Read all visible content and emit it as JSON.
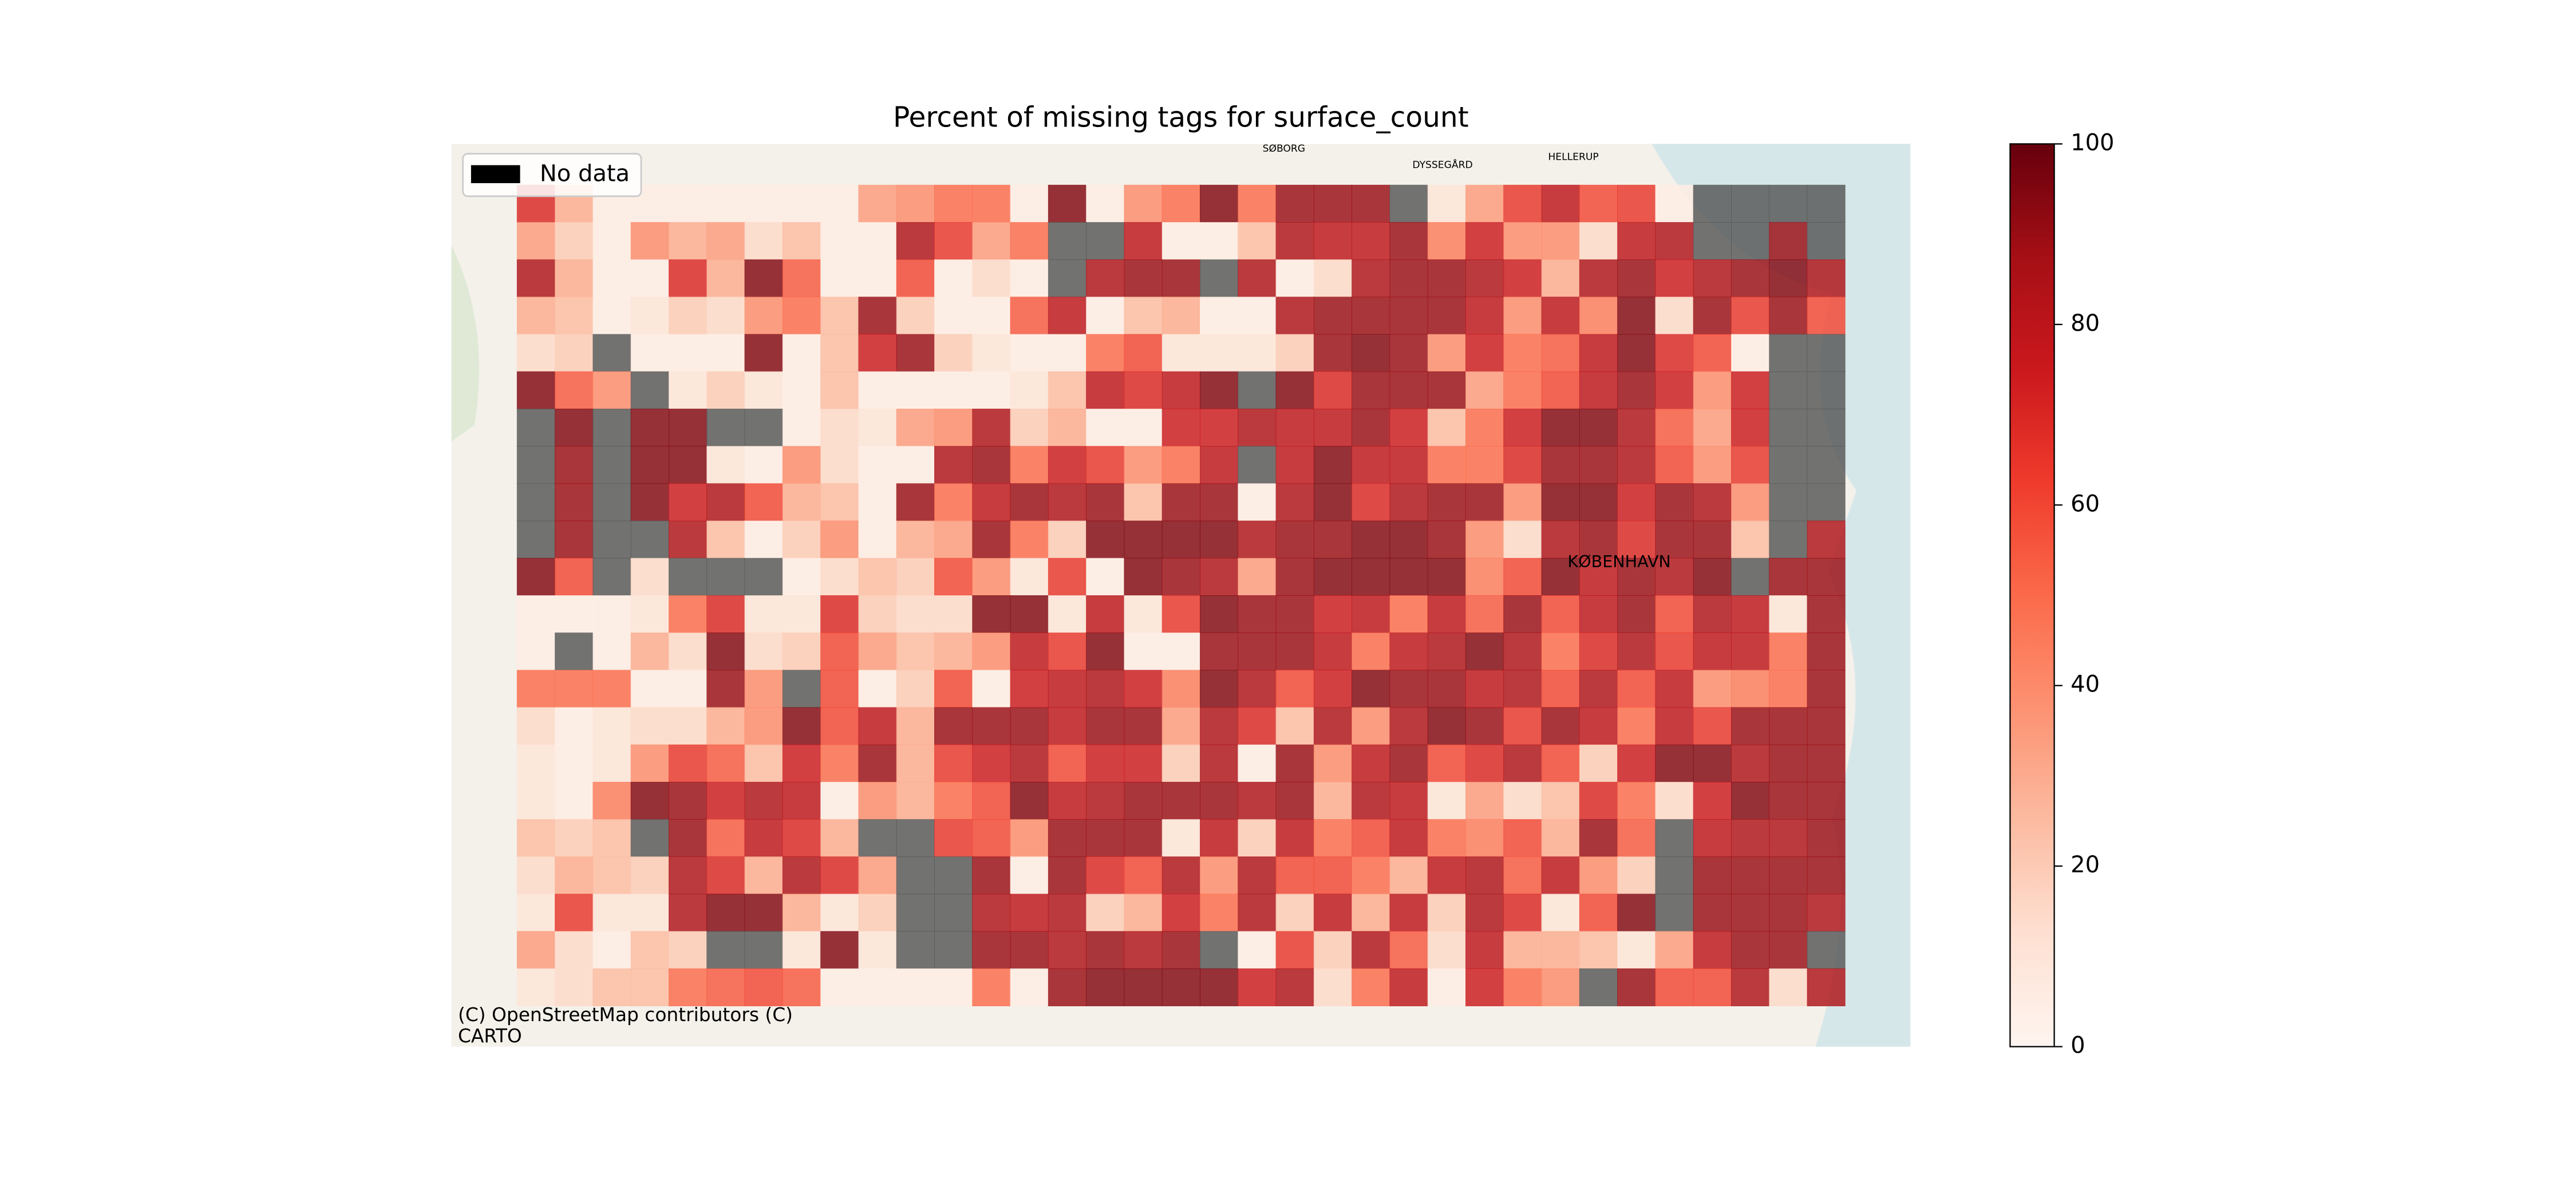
{
  "chart_data": {
    "type": "heatmap",
    "title": "Percent of missing tags for surface_count",
    "legend_label": "No data",
    "legend_color": "#000000",
    "nodata_color": "#555555",
    "legend_position": "upper left",
    "attribution": [
      "(C) OpenStreetMap contributors (C)",
      "CARTO"
    ],
    "map_labels": [
      "SØBORG",
      "DYSSEGÅRD",
      "HELLERUP",
      "KØBENHAVN"
    ],
    "colorscale": [
      "#fff5f0",
      "#fee0d2",
      "#fcbba1",
      "#fc9272",
      "#fb6a4a",
      "#ef3b2c",
      "#cb181d",
      "#a50f15",
      "#67000d"
    ],
    "clim": [
      0,
      100
    ],
    "cticks": [
      0,
      20,
      40,
      60,
      80,
      100
    ],
    "values": [
      [
        70,
        30,
        5,
        5,
        5,
        5,
        5,
        5,
        5,
        35,
        40,
        50,
        50,
        5,
        95,
        5,
        40,
        50,
        95,
        50,
        90,
        90,
        90,
        null,
        10,
        35,
        65,
        80,
        60,
        65,
        5,
        null,
        null,
        null,
        null
      ],
      [
        35,
        20,
        5,
        40,
        30,
        35,
        15,
        25,
        5,
        5,
        85,
        65,
        35,
        50,
        null,
        null,
        80,
        5,
        5,
        25,
        85,
        80,
        80,
        90,
        45,
        75,
        40,
        40,
        15,
        80,
        85,
        null,
        null,
        90,
        null
      ],
      [
        85,
        30,
        5,
        5,
        70,
        30,
        95,
        55,
        5,
        5,
        60,
        5,
        15,
        5,
        null,
        85,
        90,
        90,
        null,
        85,
        5,
        15,
        85,
        90,
        90,
        85,
        75,
        30,
        85,
        90,
        75,
        85,
        90,
        95,
        85
      ],
      [
        30,
        25,
        5,
        10,
        20,
        15,
        40,
        50,
        25,
        90,
        20,
        5,
        5,
        55,
        80,
        5,
        25,
        30,
        5,
        5,
        85,
        90,
        90,
        90,
        90,
        80,
        40,
        80,
        45,
        95,
        15,
        90,
        65,
        90,
        60
      ],
      [
        15,
        20,
        null,
        5,
        5,
        5,
        95,
        5,
        25,
        75,
        90,
        20,
        10,
        5,
        5,
        50,
        60,
        10,
        10,
        10,
        20,
        90,
        95,
        90,
        40,
        75,
        50,
        55,
        80,
        95,
        70,
        60,
        5,
        null,
        null
      ],
      [
        95,
        55,
        40,
        null,
        10,
        20,
        10,
        5,
        25,
        5,
        5,
        5,
        5,
        10,
        25,
        80,
        70,
        80,
        95,
        null,
        95,
        70,
        90,
        90,
        90,
        35,
        50,
        60,
        80,
        90,
        75,
        40,
        75,
        null,
        null
      ],
      [
        null,
        95,
        null,
        95,
        95,
        null,
        null,
        5,
        15,
        10,
        35,
        40,
        85,
        20,
        30,
        5,
        5,
        75,
        75,
        85,
        80,
        80,
        90,
        75,
        25,
        50,
        75,
        95,
        95,
        85,
        55,
        35,
        75,
        null,
        null
      ],
      [
        null,
        90,
        null,
        95,
        95,
        10,
        5,
        40,
        15,
        5,
        5,
        85,
        90,
        50,
        75,
        65,
        40,
        50,
        80,
        null,
        80,
        95,
        80,
        80,
        50,
        50,
        70,
        90,
        90,
        85,
        60,
        40,
        65,
        null,
        null
      ],
      [
        null,
        90,
        null,
        95,
        75,
        85,
        60,
        30,
        25,
        5,
        90,
        50,
        80,
        90,
        85,
        90,
        25,
        90,
        90,
        5,
        85,
        95,
        70,
        85,
        90,
        90,
        40,
        95,
        95,
        75,
        90,
        85,
        40,
        null,
        null
      ],
      [
        null,
        90,
        null,
        null,
        85,
        25,
        5,
        20,
        40,
        5,
        30,
        35,
        90,
        50,
        20,
        95,
        95,
        95,
        95,
        85,
        90,
        90,
        95,
        95,
        90,
        40,
        15,
        85,
        90,
        70,
        90,
        90,
        25,
        null,
        85
      ],
      [
        95,
        60,
        null,
        15,
        null,
        null,
        null,
        5,
        15,
        25,
        20,
        60,
        40,
        10,
        65,
        5,
        95,
        90,
        85,
        35,
        90,
        95,
        95,
        95,
        95,
        45,
        60,
        95,
        80,
        90,
        85,
        95,
        null,
        90,
        90
      ],
      [
        5,
        5,
        5,
        10,
        50,
        70,
        10,
        10,
        70,
        20,
        15,
        15,
        95,
        95,
        10,
        80,
        10,
        65,
        95,
        90,
        90,
        75,
        80,
        50,
        80,
        55,
        90,
        60,
        80,
        90,
        60,
        85,
        80,
        10,
        90
      ],
      [
        5,
        null,
        5,
        30,
        15,
        95,
        15,
        20,
        60,
        35,
        25,
        30,
        40,
        80,
        65,
        95,
        5,
        5,
        90,
        90,
        90,
        80,
        50,
        80,
        85,
        95,
        85,
        50,
        70,
        85,
        65,
        80,
        80,
        50,
        90
      ],
      [
        50,
        50,
        50,
        5,
        5,
        90,
        40,
        null,
        60,
        5,
        20,
        60,
        5,
        75,
        80,
        85,
        75,
        45,
        95,
        85,
        60,
        75,
        95,
        90,
        90,
        80,
        85,
        60,
        85,
        60,
        80,
        40,
        45,
        50,
        90
      ],
      [
        15,
        5,
        10,
        15,
        15,
        30,
        40,
        95,
        60,
        80,
        30,
        90,
        90,
        90,
        80,
        90,
        90,
        35,
        85,
        70,
        25,
        85,
        40,
        85,
        95,
        90,
        65,
        90,
        80,
        50,
        80,
        65,
        90,
        90,
        90
      ],
      [
        10,
        5,
        10,
        40,
        65,
        55,
        25,
        75,
        50,
        90,
        30,
        65,
        75,
        85,
        60,
        75,
        75,
        20,
        85,
        5,
        90,
        40,
        80,
        90,
        60,
        70,
        85,
        60,
        20,
        75,
        95,
        95,
        85,
        90,
        90
      ],
      [
        10,
        5,
        45,
        95,
        90,
        75,
        85,
        80,
        5,
        40,
        30,
        50,
        60,
        95,
        80,
        85,
        90,
        90,
        90,
        85,
        90,
        30,
        85,
        80,
        10,
        35,
        15,
        25,
        70,
        50,
        15,
        75,
        95,
        90,
        90
      ],
      [
        25,
        20,
        25,
        null,
        90,
        55,
        80,
        70,
        30,
        null,
        null,
        65,
        60,
        40,
        90,
        90,
        90,
        10,
        80,
        20,
        80,
        50,
        60,
        80,
        50,
        45,
        60,
        30,
        90,
        55,
        null,
        80,
        85,
        85,
        90
      ],
      [
        15,
        30,
        25,
        20,
        85,
        70,
        30,
        85,
        70,
        35,
        null,
        null,
        90,
        5,
        90,
        70,
        60,
        85,
        40,
        85,
        60,
        60,
        50,
        30,
        80,
        85,
        55,
        80,
        40,
        20,
        null,
        90,
        90,
        90,
        90
      ],
      [
        10,
        65,
        10,
        10,
        85,
        95,
        95,
        30,
        10,
        20,
        null,
        null,
        85,
        80,
        85,
        20,
        30,
        75,
        50,
        85,
        20,
        80,
        30,
        80,
        20,
        85,
        70,
        10,
        60,
        95,
        null,
        90,
        90,
        90,
        85
      ],
      [
        35,
        15,
        5,
        25,
        20,
        null,
        null,
        10,
        95,
        10,
        null,
        null,
        90,
        90,
        85,
        90,
        85,
        90,
        null,
        5,
        65,
        20,
        85,
        55,
        15,
        80,
        30,
        30,
        25,
        10,
        35,
        80,
        90,
        90,
        null
      ],
      [
        10,
        15,
        25,
        25,
        50,
        55,
        60,
        55,
        5,
        5,
        5,
        5,
        50,
        5,
        90,
        95,
        95,
        95,
        95,
        75,
        85,
        15,
        50,
        80,
        5,
        75,
        50,
        40,
        null,
        90,
        60,
        60,
        85,
        15,
        85
      ]
    ]
  }
}
